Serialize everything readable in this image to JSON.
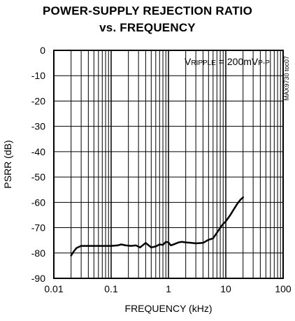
{
  "chart_data": {
    "type": "line",
    "title": "POWER-SUPPLY REJECTION RATIO",
    "subtitle": "vs. FREQUENCY",
    "xlabel": "FREQUENCY (kHz)",
    "ylabel": "PSRR (dB)",
    "x_scale": "log",
    "xlim": [
      0.01,
      100
    ],
    "ylim": [
      -90,
      0
    ],
    "grid": true,
    "x_ticks": [
      "0.01",
      "0.1",
      "1",
      "10",
      "100"
    ],
    "y_ticks": [
      "0",
      "-10",
      "-20",
      "-30",
      "-40",
      "-50",
      "-60",
      "-70",
      "-80",
      "-90"
    ],
    "annotation": {
      "prefix": "V",
      "sub": "RIPPLE",
      "mid": " = 200mV",
      "sub2": "P-P"
    },
    "side_id": "MAX9730 toc07",
    "series": [
      {
        "x": [
          0.02,
          0.022,
          0.025,
          0.03,
          0.04,
          0.06,
          0.1,
          0.13,
          0.15,
          0.18,
          0.22,
          0.27,
          0.32,
          0.4,
          0.5,
          0.6,
          0.7,
          0.8,
          0.9,
          1.0,
          1.1,
          1.3,
          1.5,
          1.7,
          2.0,
          2.5,
          3.0,
          4.0,
          5.0,
          6.0,
          7.0,
          8.0,
          9.0,
          10,
          12,
          14,
          16,
          18,
          20
        ],
        "y": [
          -81,
          -79.5,
          -78,
          -77.2,
          -77.2,
          -77.2,
          -77.2,
          -77.0,
          -76.6,
          -77.0,
          -77.2,
          -77.0,
          -77.8,
          -76.0,
          -77.8,
          -77.4,
          -76.6,
          -76.8,
          -75.6,
          -75.8,
          -77.0,
          -76.4,
          -75.8,
          -75.6,
          -75.8,
          -76.0,
          -76.2,
          -76.0,
          -74.8,
          -74.2,
          -72.0,
          -70.0,
          -68.5,
          -67.5,
          -65.0,
          -62.5,
          -60.5,
          -59.0,
          -58.0
        ]
      }
    ]
  }
}
